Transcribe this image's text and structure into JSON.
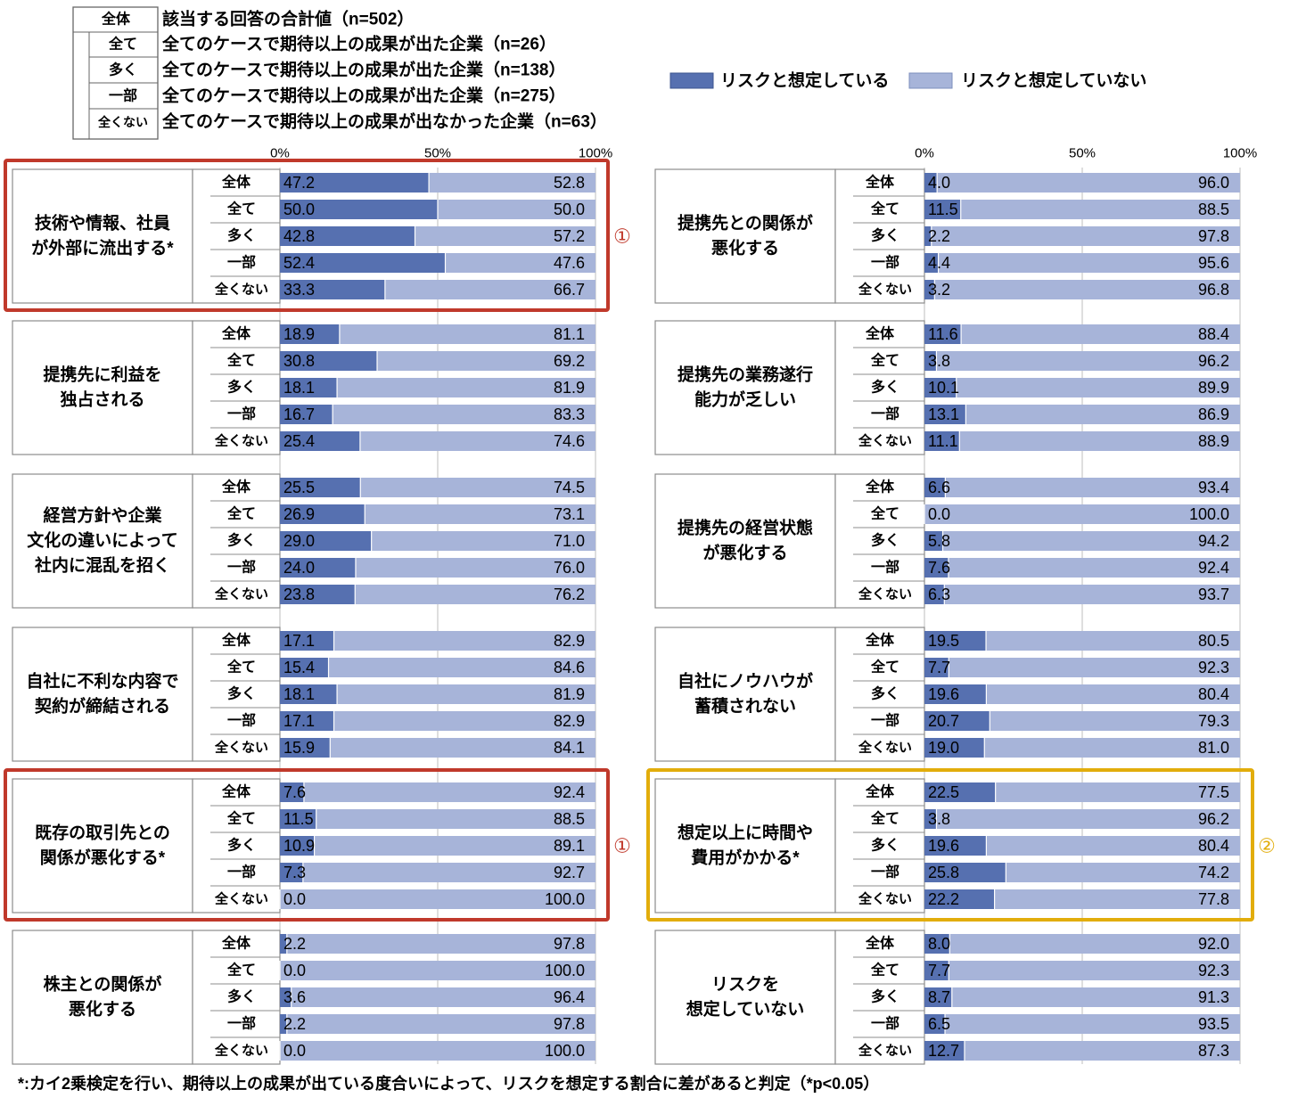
{
  "groups": {
    "codes": [
      "全体",
      "全て",
      "多く",
      "一部",
      "全くない"
    ],
    "descriptions": [
      "該当する回答の合計値（n=502）",
      "全てのケースで期待以上の成果が出た企業（n=26）",
      "全てのケースで期待以上の成果が出た企業（n=138）",
      "全てのケースで期待以上の成果が出た企業（n=275）",
      "全てのケースで期待以上の成果が出なかった企業（n=63）"
    ]
  },
  "legend": {
    "assumed": "リスクと想定している",
    "not_assumed": "リスクと想定していない"
  },
  "footnote": "*:カイ2乗検定を行い、期待以上の成果が出ている度合いによって、リスクを想定する割合に差があると判定（*p<0.05）",
  "colors": {
    "assumed": "#5670b0",
    "not_assumed": "#a7b4d9",
    "highlight_red": "#c0392b",
    "highlight_yellow": "#e2ad0b"
  },
  "chart_data": {
    "type": "bar",
    "orientation": "horizontal",
    "stacked": true,
    "axis_ticks": [
      "0%",
      "50%",
      "100%"
    ],
    "xlim": [
      0,
      100
    ],
    "series_names": [
      "リスクと想定している",
      "リスクと想定していない"
    ],
    "panels": [
      {
        "column": "left",
        "label": [
          "技術や情報、社員",
          "が外部に流出する*"
        ],
        "values": [
          47.2,
          50.0,
          42.8,
          52.4,
          33.3
        ],
        "rest": [
          52.8,
          50.0,
          57.2,
          47.6,
          66.7
        ],
        "highlight": "red",
        "marker": "①"
      },
      {
        "column": "left",
        "label": [
          "提携先に利益を",
          "独占される"
        ],
        "values": [
          18.9,
          30.8,
          18.1,
          16.7,
          25.4
        ],
        "rest": [
          81.1,
          69.2,
          81.9,
          83.3,
          74.6
        ]
      },
      {
        "column": "left",
        "label": [
          "経営方針や企業",
          "文化の違いによって",
          "社内に混乱を招く"
        ],
        "values": [
          25.5,
          26.9,
          29.0,
          24.0,
          23.8
        ],
        "rest": [
          74.5,
          73.1,
          71.0,
          76.0,
          76.2
        ]
      },
      {
        "column": "left",
        "label": [
          "自社に不利な内容で",
          "契約が締結される"
        ],
        "values": [
          17.1,
          15.4,
          18.1,
          17.1,
          15.9
        ],
        "rest": [
          82.9,
          84.6,
          81.9,
          82.9,
          84.1
        ]
      },
      {
        "column": "left",
        "label": [
          "既存の取引先との",
          "関係が悪化する*"
        ],
        "values": [
          7.6,
          11.5,
          10.9,
          7.3,
          0.0
        ],
        "rest": [
          92.4,
          88.5,
          89.1,
          92.7,
          100.0
        ],
        "highlight": "red",
        "marker": "①"
      },
      {
        "column": "left",
        "label": [
          "株主との関係が",
          "悪化する"
        ],
        "values": [
          2.2,
          0.0,
          3.6,
          2.2,
          0.0
        ],
        "rest": [
          97.8,
          100.0,
          96.4,
          97.8,
          100.0
        ]
      },
      {
        "column": "right",
        "label": [
          "提携先との関係が",
          "悪化する"
        ],
        "values": [
          4.0,
          11.5,
          2.2,
          4.4,
          3.2
        ],
        "rest": [
          96.0,
          88.5,
          97.8,
          95.6,
          96.8
        ]
      },
      {
        "column": "right",
        "label": [
          "提携先の業務遂行",
          "能力が乏しい"
        ],
        "values": [
          11.6,
          3.8,
          10.1,
          13.1,
          11.1
        ],
        "rest": [
          88.4,
          96.2,
          89.9,
          86.9,
          88.9
        ]
      },
      {
        "column": "right",
        "label": [
          "提携先の経営状態",
          "が悪化する"
        ],
        "values": [
          6.6,
          0.0,
          5.8,
          7.6,
          6.3
        ],
        "rest": [
          93.4,
          100.0,
          94.2,
          92.4,
          93.7
        ]
      },
      {
        "column": "right",
        "label": [
          "自社にノウハウが",
          "蓄積されない"
        ],
        "values": [
          19.5,
          7.7,
          19.6,
          20.7,
          19.0
        ],
        "rest": [
          80.5,
          92.3,
          80.4,
          79.3,
          81.0
        ]
      },
      {
        "column": "right",
        "label": [
          "想定以上に時間や",
          "費用がかかる*"
        ],
        "values": [
          22.5,
          3.8,
          19.6,
          25.8,
          22.2
        ],
        "rest": [
          77.5,
          96.2,
          80.4,
          74.2,
          77.8
        ],
        "highlight": "yellow",
        "marker": "②"
      },
      {
        "column": "right",
        "label": [
          "リスクを",
          "想定していない"
        ],
        "values": [
          8.0,
          7.7,
          8.7,
          6.5,
          12.7
        ],
        "rest": [
          92.0,
          92.3,
          91.3,
          93.5,
          87.3
        ]
      }
    ]
  }
}
